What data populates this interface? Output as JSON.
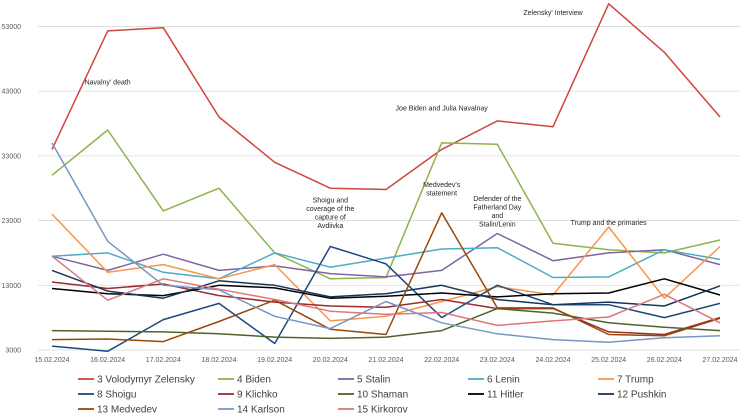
{
  "chart_data": {
    "type": "line",
    "title": "",
    "xlabel": "",
    "ylabel": "",
    "ylim": [
      3000,
      56000
    ],
    "yticks": [
      3000,
      13000,
      23000,
      33000,
      43000,
      53000
    ],
    "ytick_labels": [
      "3000",
      "13000",
      "23000",
      "33000",
      "43000",
      "53000"
    ],
    "categories": [
      "15.02.2024",
      "16.02.2024",
      "17.02.2024",
      "18.02.2024",
      "19.02.2024",
      "20.02.2024",
      "21.02.2024",
      "22.02.2024",
      "23.02.2024",
      "24.02.2024",
      "25.02.2024",
      "26.02.2024",
      "27.02.2024"
    ],
    "grid": "horizontal",
    "legend_position": "bottom",
    "series": [
      {
        "name": "3 Volodymyr Zelensky",
        "color": "#d0453d",
        "values": [
          34000,
          52300,
          52800,
          39000,
          32000,
          28000,
          27800,
          34000,
          38400,
          37500,
          56500,
          49000,
          39000
        ]
      },
      {
        "name": "4 Biden",
        "color": "#8cb44a",
        "values": [
          30000,
          37000,
          24500,
          28000,
          18000,
          14000,
          14200,
          35000,
          34800,
          19500,
          18500,
          18000,
          20000
        ]
      },
      {
        "name": "5 Stalin",
        "color": "#8064a2",
        "values": [
          17500,
          15300,
          17800,
          15300,
          16000,
          14800,
          14300,
          15300,
          21000,
          16800,
          18000,
          18500,
          16200
        ]
      },
      {
        "name": "6 Lenin",
        "color": "#4bacc6",
        "values": [
          17500,
          18000,
          15000,
          14000,
          18000,
          15800,
          17200,
          18600,
          18800,
          14200,
          14300,
          18500,
          17000
        ]
      },
      {
        "name": "7 Trump",
        "color": "#f79646",
        "values": [
          24000,
          15000,
          16200,
          14000,
          16200,
          7500,
          8200,
          10500,
          12800,
          11500,
          22000,
          11000,
          19000
        ]
      },
      {
        "name": "8 Shoigu",
        "color": "#1f497d",
        "values": [
          3600,
          2800,
          7700,
          10200,
          4000,
          19000,
          16300,
          8000,
          13000,
          10000,
          10000,
          8000,
          10200
        ]
      },
      {
        "name": "9 Klichko",
        "color": "#9b2d2a",
        "values": [
          13500,
          12500,
          13200,
          11400,
          10400,
          9800,
          9600,
          10800,
          9400,
          9400,
          5800,
          5400,
          8000
        ]
      },
      {
        "name": "10 Shaman",
        "color": "#4f6228",
        "values": [
          6000,
          5900,
          5800,
          5500,
          5000,
          4800,
          5000,
          6000,
          9400,
          8700,
          7200,
          6500,
          6000
        ]
      },
      {
        "name": "11 Hitler",
        "color": "#000000",
        "values": [
          12500,
          11700,
          11400,
          13000,
          12600,
          11000,
          11300,
          11800,
          11200,
          11700,
          11800,
          14000,
          11500
        ]
      },
      {
        "name": "12 Pushkin",
        "color": "#17365d",
        "values": [
          15300,
          12100,
          11000,
          13700,
          13000,
          11200,
          11700,
          13000,
          10800,
          10000,
          10400,
          9800,
          12900
        ]
      },
      {
        "name": "13 Medvedev",
        "color": "#984807",
        "values": [
          4600,
          4700,
          4300,
          7400,
          10700,
          6200,
          5400,
          24200,
          9500,
          9500,
          5400,
          5200,
          7900
        ]
      },
      {
        "name": "14 Karlson",
        "color": "#7895c4",
        "values": [
          35000,
          19800,
          13000,
          12300,
          8200,
          6300,
          10500,
          7200,
          5500,
          4600,
          4200,
          4900,
          5200
        ]
      },
      {
        "name": "15 Kirkorov",
        "color": "#d9797c",
        "values": [
          17500,
          10700,
          14000,
          12400,
          10800,
          9000,
          8500,
          8800,
          6800,
          7500,
          8100,
          11600,
          7200
        ]
      }
    ],
    "annotations": [
      {
        "lines": [
          "Navalny' death"
        ],
        "x": "16.02.2024",
        "y": 44000
      },
      {
        "lines": [
          "Shoigu and",
          "coverage of the",
          "capture of",
          "Avdiivka"
        ],
        "x": "20.02.2024",
        "y": 25800
      },
      {
        "lines": [
          "Joe Biden and Julia Navalnay"
        ],
        "x": "22.02.2024",
        "y": 40000
      },
      {
        "lines": [
          "Medvedev's",
          "statement"
        ],
        "x": "22.02.2024",
        "y": 28200
      },
      {
        "lines": [
          "Defender of the",
          "Fatherland Day",
          "and",
          "Stalin/Lenin"
        ],
        "x": "23.02.2024",
        "y": 26000
      },
      {
        "lines": [
          "Trump and the primaries"
        ],
        "x": "25.02.2024",
        "y": 22300
      },
      {
        "lines": [
          "Zelensky' Interview"
        ],
        "x": "24.02.2024",
        "y": 54800
      }
    ]
  }
}
